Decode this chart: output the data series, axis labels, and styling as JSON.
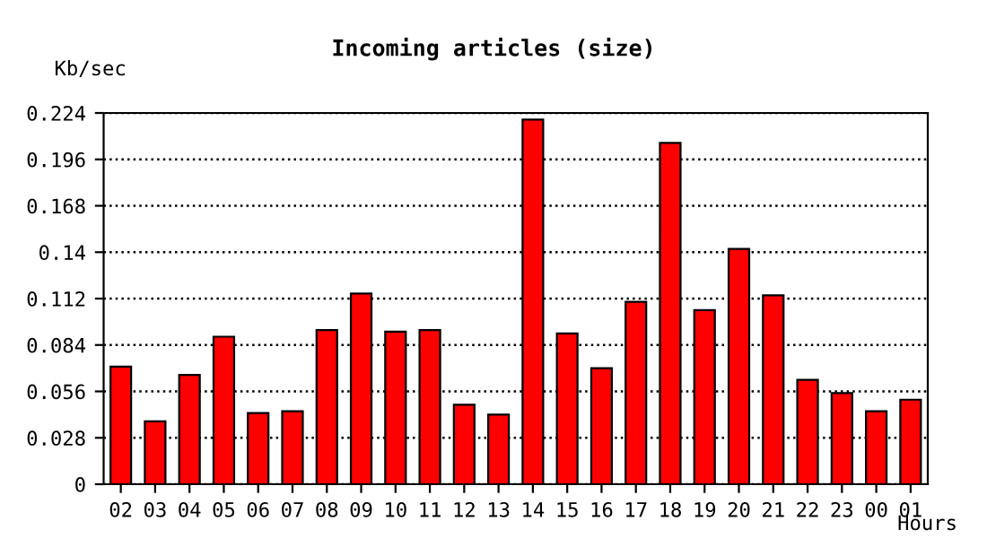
{
  "chart_data": {
    "type": "bar",
    "title": "Incoming articles (size)",
    "ylabel": "Kb/sec",
    "xlabel": "Hours",
    "categories": [
      "02",
      "03",
      "04",
      "05",
      "06",
      "07",
      "08",
      "09",
      "10",
      "11",
      "12",
      "13",
      "14",
      "15",
      "16",
      "17",
      "18",
      "19",
      "20",
      "21",
      "22",
      "23",
      "00",
      "01"
    ],
    "values": [
      0.071,
      0.038,
      0.066,
      0.089,
      0.043,
      0.044,
      0.093,
      0.115,
      0.092,
      0.093,
      0.048,
      0.042,
      0.22,
      0.091,
      0.07,
      0.11,
      0.206,
      0.105,
      0.142,
      0.114,
      0.063,
      0.055,
      0.044,
      0.051
    ],
    "color": "#ff0000",
    "ylim": [
      0,
      0.224
    ],
    "yticks": [
      0,
      0.028,
      0.056,
      0.084,
      0.112,
      0.14,
      0.168,
      0.196,
      0.224
    ],
    "grid": "y",
    "line_style": "dotted"
  }
}
